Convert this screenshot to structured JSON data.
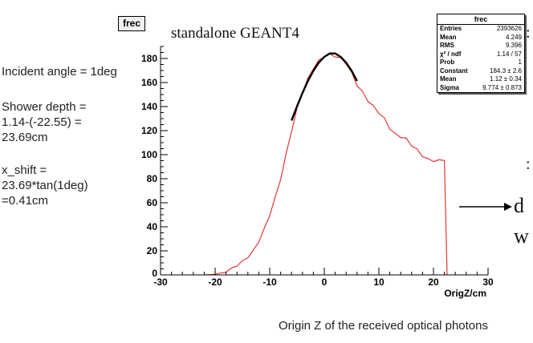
{
  "frame_tag": "frec",
  "headline": "standalone GEANT4",
  "notes": {
    "angle": "Incident angle = 1deg",
    "depth": "Shower depth =\n1.14-(-22.55) =\n23.69cm",
    "shift": "x_shift =\n23.69*tan(1deg)\n=0.41cm"
  },
  "caption": "Origin Z of the received optical photons",
  "stats_box": {
    "title": "frec",
    "rows": [
      {
        "key": "Entries",
        "value": "2393626"
      },
      {
        "key": "Mean",
        "value": "4.249"
      },
      {
        "key": "RMS",
        "value": "9.396"
      },
      {
        "key": "χ² / ndf",
        "value": "1.14 / 57"
      },
      {
        "key": "Prob",
        "value": "1"
      },
      {
        "key": "Constant",
        "value": "184.3 ± 2.6"
      },
      {
        "key": "Mean",
        "value": "1.12 ± 0.34"
      },
      {
        "key": "Sigma",
        "value": "9.774 ± 0.873"
      }
    ]
  },
  "edge_text": {
    "arrow_label": "d",
    "second_line": "w",
    "stub_right": ":",
    "stub_right2": ":"
  },
  "colors": {
    "histogram": "#e0262b",
    "fit": "#000000",
    "axis": "#000000"
  },
  "chart_data": {
    "type": "line",
    "xlabel": "OrigZ/cm",
    "ylabel": "",
    "xlim": [
      -30,
      30
    ],
    "ylim": [
      0,
      190
    ],
    "x_ticks": [
      -30,
      -20,
      -10,
      0,
      10,
      20,
      30
    ],
    "y_ticks": [
      20,
      40,
      60,
      80,
      100,
      120,
      140,
      160,
      180
    ],
    "grid": false,
    "series": [
      {
        "type": "histogram",
        "x": [
          -30,
          -25,
          -22,
          -20,
          -19,
          -18,
          -17,
          -16,
          -15,
          -14,
          -13,
          -12,
          -11,
          -10,
          -9,
          -8,
          -7,
          -6,
          -5,
          -4,
          -3,
          -2,
          -1,
          0,
          1,
          2,
          3,
          4,
          5,
          6,
          7,
          8,
          9,
          10,
          11,
          12,
          13,
          14,
          15,
          16,
          17,
          18,
          19,
          20,
          21,
          22,
          22.5,
          23,
          25,
          30
        ],
        "values": [
          0,
          0,
          0,
          0.5,
          1.5,
          3,
          5,
          8,
          11,
          15,
          20,
          28,
          38,
          50,
          64,
          80,
          100,
          120,
          138,
          152,
          163,
          172,
          178,
          182,
          183,
          182,
          180,
          176,
          168,
          158,
          152,
          145,
          140,
          135,
          130,
          122,
          117,
          115,
          113,
          108,
          104,
          99,
          96,
          95,
          95,
          96,
          0,
          0,
          0,
          0
        ]
      },
      {
        "type": "fit",
        "x": [
          -6,
          -5,
          -4,
          -3,
          -2,
          -1,
          0,
          1,
          2,
          3,
          4,
          5,
          6
        ],
        "values": [
          128.4,
          140.2,
          151.3,
          161.3,
          169.8,
          176.6,
          181.4,
          184.2,
          184.2,
          181.4,
          176.6,
          169.8,
          161.3
        ]
      }
    ]
  }
}
